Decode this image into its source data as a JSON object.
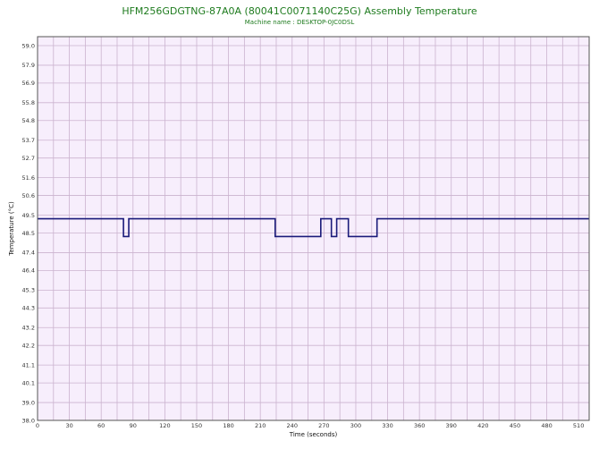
{
  "chart_data": {
    "type": "line",
    "title": "HFM256GDGTNG-87A0A (80041C0071140C25G) Assembly Temperature",
    "subtitle": "Machine name : DESKTOP-0JC0DSL",
    "xlabel": "Time (seconds)",
    "ylabel": "Temperature (°C)",
    "xlim": [
      0,
      520
    ],
    "ylim": [
      38.0,
      59.5
    ],
    "grid": true,
    "x_ticks": [
      0,
      30,
      60,
      90,
      120,
      150,
      180,
      210,
      240,
      270,
      300,
      330,
      360,
      390,
      420,
      450,
      480,
      510
    ],
    "x_tick_labels": [
      "0",
      "30",
      "60",
      "90",
      "120",
      "150",
      "180",
      "210",
      "240",
      "270",
      "300",
      "330",
      "360",
      "390",
      "420",
      "450",
      "480",
      "510"
    ],
    "y_ticks": [
      38.0,
      39.0,
      40.1,
      41.1,
      42.2,
      43.2,
      44.3,
      45.3,
      46.4,
      47.4,
      48.5,
      49.5,
      50.6,
      51.6,
      52.7,
      53.7,
      54.8,
      55.8,
      56.9,
      57.9,
      59.0
    ],
    "y_tick_labels": [
      "38.0",
      "39.0",
      "40.1",
      "41.1",
      "42.2",
      "43.2",
      "44.3",
      "45.3",
      "46.4",
      "47.4",
      "48.5",
      "49.5",
      "50.6",
      "51.6",
      "52.7",
      "53.7",
      "54.8",
      "55.8",
      "56.9",
      "57.9",
      "59.0"
    ],
    "series": [
      {
        "x": [
          0,
          81,
          81,
          86,
          86,
          224,
          224,
          267,
          267,
          277,
          277,
          282,
          282,
          293,
          293,
          320,
          320,
          520
        ],
        "y": [
          49.3,
          49.3,
          48.3,
          48.3,
          49.3,
          49.3,
          48.3,
          48.3,
          49.3,
          49.3,
          48.3,
          48.3,
          49.3,
          49.3,
          48.3,
          48.3,
          49.3,
          49.3
        ],
        "color": "#1a1a7a"
      }
    ],
    "plot_background": "#f7eefc",
    "grid_color": "#cbb3cf"
  }
}
